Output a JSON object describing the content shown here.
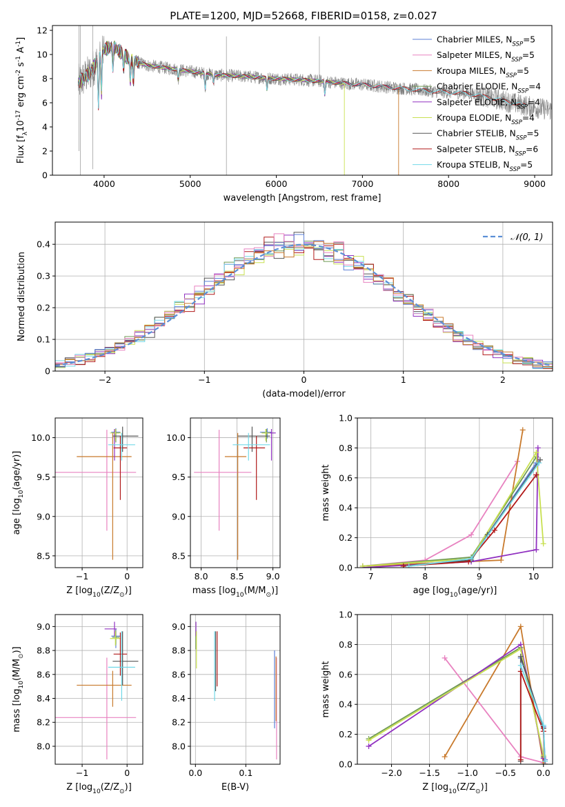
{
  "figure_title": "PLATE=1200, MJD=52668, FIBERID=0158, z=0.027",
  "colors": {
    "chabrier_miles": "#5b7fd6",
    "salpeter_miles": "#e882c0",
    "kroupa_miles": "#c8792b",
    "chabrier_elodie": "#6f9a55",
    "salpeter_elodie": "#9030c0",
    "kroupa_elodie": "#c8e050",
    "chabrier_stelib": "#555555",
    "salpeter_stelib": "#b01818",
    "kroupa_stelib": "#70d8e8",
    "data": "#808080",
    "normal": "#5b8fd6"
  },
  "chart_data": [
    {
      "id": "spectrum",
      "type": "line",
      "title": "PLATE=1200, MJD=52668, FIBERID=0158, z=0.027",
      "xlabel": "wavelength [Angstrom, rest frame]",
      "ylabel": "Flux [f_λ10^-17 erg cm^-2 s^-1 A^-1]",
      "xlim": [
        3400,
        9200
      ],
      "ylim": [
        0,
        12.4
      ],
      "xticks": [
        4000,
        5000,
        6000,
        7000,
        8000,
        9000
      ],
      "yticks": [
        0,
        2,
        4,
        6,
        8,
        10,
        12
      ],
      "grid": false,
      "legend_position": "top-right",
      "legend": [
        {
          "name": "Chabrier MILES, N_SSP=5",
          "color_key": "chabrier_miles"
        },
        {
          "name": "Salpeter MILES, N_SSP=5",
          "color_key": "salpeter_miles"
        },
        {
          "name": "Kroupa MILES, N_SSP=5",
          "color_key": "kroupa_miles"
        },
        {
          "name": "Chabrier ELODIE, N_SSP=4",
          "color_key": "chabrier_elodie"
        },
        {
          "name": "Salpeter ELODIE, N_SSP=4",
          "color_key": "salpeter_elodie"
        },
        {
          "name": "Kroupa ELODIE, N_SSP=4",
          "color_key": "kroupa_elodie"
        },
        {
          "name": "Chabrier STELIB, N_SSP=5",
          "color_key": "chabrier_stelib"
        },
        {
          "name": "Salpeter STELIB, N_SSP=6",
          "color_key": "salpeter_stelib"
        },
        {
          "name": "Kroupa STELIB, N_SSP=5",
          "color_key": "kroupa_stelib"
        }
      ],
      "continuum": {
        "x": [
          3700,
          3850,
          4000,
          4100,
          4300,
          4500,
          4700,
          5000,
          5300,
          5600,
          6000,
          6300,
          6500,
          6800,
          7000,
          7300,
          7600,
          7900,
          8200,
          8500,
          8800,
          9000,
          9200
        ],
        "y": [
          7.6,
          8.6,
          10.4,
          10.7,
          9.6,
          9.1,
          8.9,
          8.6,
          8.3,
          8.2,
          8.0,
          7.9,
          7.8,
          7.6,
          7.5,
          7.3,
          7.1,
          6.9,
          6.8,
          6.4,
          5.9,
          5.6,
          5.4
        ]
      }
    },
    {
      "id": "residuals",
      "type": "line",
      "xlabel": "(data-model)/error",
      "ylabel": "Normed distribution",
      "xlim": [
        -2.5,
        2.5
      ],
      "ylim": [
        0,
        0.47
      ],
      "xticks": [
        -2,
        -1,
        0,
        1,
        2
      ],
      "yticks": [
        0.0,
        0.1,
        0.2,
        0.3,
        0.4
      ],
      "grid": true,
      "legend_position": "top-right",
      "legend": [
        {
          "name": "𝒩(0, 1)",
          "color_key": "normal"
        }
      ],
      "bin_width": 0.1
    },
    {
      "id": "age_vs_z",
      "type": "scatter",
      "xlabel": "Z [log10(Z/Z⊙)]",
      "ylabel": "age [log10(age/yr)]",
      "xlim": [
        -1.6,
        0.35
      ],
      "ylim": [
        8.35,
        10.25
      ],
      "xticks": [
        -1,
        0
      ],
      "yticks": [
        8.5,
        9.0,
        9.5,
        10.0
      ],
      "grid": true,
      "points": [
        {
          "k": "chabrier_miles",
          "x": -0.25,
          "xe": [
            0.1,
            0.1
          ],
          "y": 10.07,
          "ye": [
            0.08,
            0.05
          ]
        },
        {
          "k": "salpeter_miles",
          "x": -0.45,
          "xe": [
            1.15,
            0.65
          ],
          "y": 9.56,
          "ye": [
            0.74,
            0.54
          ]
        },
        {
          "k": "kroupa_miles",
          "x": -0.32,
          "xe": [
            0.8,
            0.42
          ],
          "y": 9.76,
          "ye": [
            1.31,
            0.3
          ]
        },
        {
          "k": "chabrier_elodie",
          "x": -0.25,
          "xe": [
            0.08,
            0.08
          ],
          "y": 10.06,
          "ye": [
            0.12,
            0.05
          ]
        },
        {
          "k": "salpeter_elodie",
          "x": -0.28,
          "xe": [
            0.05,
            0.05
          ],
          "y": 10.06,
          "ye": [
            0.35,
            0.05
          ]
        },
        {
          "k": "kroupa_elodie",
          "x": -0.26,
          "xe": [
            0.12,
            0.12
          ],
          "y": 10.06,
          "ye": [
            0.1,
            0.05
          ]
        },
        {
          "k": "chabrier_stelib",
          "x": -0.1,
          "xe": [
            0.22,
            0.35
          ],
          "y": 10.02,
          "ye": [
            0.2,
            0.12
          ]
        },
        {
          "k": "salpeter_stelib",
          "x": -0.15,
          "xe": [
            0.15,
            0.15
          ],
          "y": 9.87,
          "ye": [
            0.66,
            0.15
          ]
        },
        {
          "k": "kroupa_stelib",
          "x": -0.12,
          "xe": [
            0.3,
            0.3
          ],
          "y": 9.91,
          "ye": [
            0.2,
            0.15
          ]
        }
      ]
    },
    {
      "id": "age_vs_mass",
      "type": "scatter",
      "xlabel": "mass [log10(M/M⊙)]",
      "ylabel": "",
      "xlim": [
        7.85,
        9.1
      ],
      "ylim": [
        8.35,
        10.25
      ],
      "xticks": [
        8.0,
        8.5,
        9.0
      ],
      "yticks": [
        8.5,
        9.0,
        9.5,
        10.0
      ],
      "grid": true,
      "points": [
        {
          "k": "chabrier_miles",
          "x": 8.92,
          "xe": [
            0.1,
            0.06
          ],
          "y": 10.07,
          "ye": [
            0.08,
            0.05
          ]
        },
        {
          "k": "salpeter_miles",
          "x": 8.25,
          "xe": [
            0.35,
            0.45
          ],
          "y": 9.56,
          "ye": [
            0.74,
            0.54
          ]
        },
        {
          "k": "kroupa_miles",
          "x": 8.51,
          "xe": [
            0.18,
            0.12
          ],
          "y": 9.76,
          "ye": [
            1.31,
            0.3
          ]
        },
        {
          "k": "chabrier_elodie",
          "x": 8.91,
          "xe": [
            0.06,
            0.06
          ],
          "y": 10.06,
          "ye": [
            0.12,
            0.05
          ]
        },
        {
          "k": "salpeter_elodie",
          "x": 8.98,
          "xe": [
            0.06,
            0.06
          ],
          "y": 10.06,
          "ye": [
            0.35,
            0.05
          ]
        },
        {
          "k": "kroupa_elodie",
          "x": 8.9,
          "xe": [
            0.06,
            0.06
          ],
          "y": 10.06,
          "ye": [
            0.1,
            0.05
          ]
        },
        {
          "k": "chabrier_stelib",
          "x": 8.71,
          "xe": [
            0.2,
            0.25
          ],
          "y": 10.02,
          "ye": [
            0.2,
            0.12
          ]
        },
        {
          "k": "salpeter_stelib",
          "x": 8.77,
          "xe": [
            0.18,
            0.12
          ],
          "y": 9.87,
          "ye": [
            0.66,
            0.15
          ]
        },
        {
          "k": "kroupa_stelib",
          "x": 8.66,
          "xe": [
            0.22,
            0.3
          ],
          "y": 9.91,
          "ye": [
            0.2,
            0.15
          ]
        }
      ]
    },
    {
      "id": "weight_vs_age",
      "type": "line",
      "xlabel": "age [log10(age/yr)]",
      "ylabel": "mass weight",
      "xlim": [
        6.75,
        10.35
      ],
      "ylim": [
        0,
        1.0
      ],
      "xticks": [
        7,
        8,
        9,
        10
      ],
      "yticks": [
        0.0,
        0.2,
        0.4,
        0.6,
        0.8,
        1.0
      ],
      "grid": true,
      "series": [
        {
          "k": "chabrier_miles",
          "x": [
            6.85,
            8.85,
            10.05
          ],
          "y": [
            0.01,
            0.06,
            0.7
          ]
        },
        {
          "k": "salpeter_miles",
          "x": [
            6.85,
            8.0,
            8.85,
            9.7
          ],
          "y": [
            0.01,
            0.05,
            0.22,
            0.71
          ]
        },
        {
          "k": "kroupa_miles",
          "x": [
            6.85,
            9.4,
            9.8
          ],
          "y": [
            0.01,
            0.05,
            0.92
          ]
        },
        {
          "k": "chabrier_elodie",
          "x": [
            6.85,
            8.85,
            10.05
          ],
          "y": [
            0.01,
            0.07,
            0.74
          ]
        },
        {
          "k": "salpeter_elodie",
          "x": [
            6.85,
            8.85,
            10.05,
            10.08
          ],
          "y": [
            0.0,
            0.04,
            0.12,
            0.8
          ]
        },
        {
          "k": "kroupa_elodie",
          "x": [
            6.85,
            8.85,
            10.05,
            10.18
          ],
          "y": [
            0.01,
            0.06,
            0.77,
            0.16
          ]
        },
        {
          "k": "chabrier_stelib",
          "x": [
            7.6,
            8.85,
            9.15,
            10.12
          ],
          "y": [
            0.01,
            0.05,
            0.22,
            0.72
          ]
        },
        {
          "k": "salpeter_stelib",
          "x": [
            7.6,
            8.8,
            9.28,
            10.05
          ],
          "y": [
            0.01,
            0.04,
            0.25,
            0.62
          ]
        },
        {
          "k": "kroupa_stelib",
          "x": [
            7.7,
            8.85,
            10.1
          ],
          "y": [
            0.01,
            0.06,
            0.7
          ]
        }
      ]
    },
    {
      "id": "mass_vs_z",
      "type": "scatter",
      "xlabel": "Z [log10(Z/Z⊙)]",
      "ylabel": "mass [log10(M/M⊙)]",
      "xlim": [
        -1.6,
        0.35
      ],
      "ylim": [
        7.85,
        9.1
      ],
      "xticks": [
        -1,
        0
      ],
      "yticks": [
        8.0,
        8.2,
        8.4,
        8.6,
        8.8,
        9.0
      ],
      "grid": true,
      "points": [
        {
          "k": "chabrier_miles",
          "x": -0.25,
          "xe": [
            0.1,
            0.1
          ],
          "y": 8.92,
          "ye": [
            0.1,
            0.06
          ]
        },
        {
          "k": "salpeter_miles",
          "x": -0.45,
          "xe": [
            1.15,
            0.65
          ],
          "y": 8.24,
          "ye": [
            0.35,
            0.5
          ]
        },
        {
          "k": "kroupa_miles",
          "x": -0.32,
          "xe": [
            0.8,
            0.42
          ],
          "y": 8.51,
          "ye": [
            0.18,
            0.12
          ]
        },
        {
          "k": "chabrier_elodie",
          "x": -0.25,
          "xe": [
            0.08,
            0.08
          ],
          "y": 8.91,
          "ye": [
            0.06,
            0.06
          ]
        },
        {
          "k": "salpeter_elodie",
          "x": -0.28,
          "xe": [
            0.22,
            0.05
          ],
          "y": 8.98,
          "ye": [
            0.06,
            0.06
          ]
        },
        {
          "k": "kroupa_elodie",
          "x": -0.26,
          "xe": [
            0.12,
            0.12
          ],
          "y": 8.9,
          "ye": [
            0.06,
            0.06
          ]
        },
        {
          "k": "chabrier_stelib",
          "x": -0.1,
          "xe": [
            0.22,
            0.35
          ],
          "y": 8.71,
          "ye": [
            0.2,
            0.25
          ]
        },
        {
          "k": "salpeter_stelib",
          "x": -0.15,
          "xe": [
            0.15,
            0.15
          ],
          "y": 8.77,
          "ye": [
            0.18,
            0.18
          ]
        },
        {
          "k": "kroupa_stelib",
          "x": -0.12,
          "xe": [
            0.3,
            0.3
          ],
          "y": 8.66,
          "ye": [
            0.28,
            0.3
          ]
        }
      ]
    },
    {
      "id": "mass_vs_ebv",
      "type": "scatter",
      "xlabel": "E(B-V)",
      "ylabel": "",
      "xlim": [
        -0.01,
        0.168
      ],
      "ylim": [
        7.85,
        9.1
      ],
      "xticks": [
        0.0,
        0.1
      ],
      "yticks": [
        8.0,
        8.2,
        8.4,
        8.6,
        8.8,
        9.0
      ],
      "grid": true,
      "points": [
        {
          "k": "chabrier_miles",
          "x": 0.157,
          "xe": [
            0,
            0
          ],
          "y": 8.5,
          "ye": [
            0.35,
            0.3
          ]
        },
        {
          "k": "salpeter_miles",
          "x": 0.161,
          "xe": [
            0,
            0
          ],
          "y": 8.24,
          "ye": [
            0.35,
            0.5
          ]
        },
        {
          "k": "kroupa_miles",
          "x": 0.16,
          "xe": [
            0,
            0
          ],
          "y": 8.51,
          "ye": [
            0.3,
            0.24
          ]
        },
        {
          "k": "chabrier_elodie",
          "x": 0.001,
          "xe": [
            0,
            0
          ],
          "y": 8.91,
          "ye": [
            0.1,
            0.06
          ]
        },
        {
          "k": "salpeter_elodie",
          "x": 0.001,
          "xe": [
            0,
            0
          ],
          "y": 8.98,
          "ye": [
            0.06,
            0.06
          ]
        },
        {
          "k": "kroupa_elodie",
          "x": 0.002,
          "xe": [
            0,
            0
          ],
          "y": 8.9,
          "ye": [
            0.25,
            0.06
          ]
        },
        {
          "k": "chabrier_stelib",
          "x": 0.04,
          "xe": [
            0,
            0
          ],
          "y": 8.71,
          "ye": [
            0.25,
            0.25
          ]
        },
        {
          "k": "salpeter_stelib",
          "x": 0.043,
          "xe": [
            0,
            0
          ],
          "y": 8.72,
          "ye": [
            0.22,
            0.24
          ]
        },
        {
          "k": "kroupa_stelib",
          "x": 0.038,
          "xe": [
            0,
            0
          ],
          "y": 8.66,
          "ye": [
            0.28,
            0.3
          ]
        }
      ]
    },
    {
      "id": "weight_vs_z",
      "type": "line",
      "xlabel": "Z [log10(Z/Z⊙)]",
      "ylabel": "mass weight",
      "xlim": [
        -2.45,
        0.12
      ],
      "ylim": [
        0,
        1.0
      ],
      "xticks": [
        -2.0,
        -1.5,
        -1.0,
        -0.5,
        0.0
      ],
      "yticks": [
        0.0,
        0.2,
        0.4,
        0.6,
        0.8,
        1.0
      ],
      "grid": true,
      "series": [
        {
          "k": "chabrier_miles",
          "x": [
            -0.3,
            0.0,
            0.02
          ],
          "y": [
            0.71,
            0.25,
            0.03
          ]
        },
        {
          "k": "salpeter_miles",
          "x": [
            -1.3,
            -0.3,
            0.0
          ],
          "y": [
            0.71,
            0.05,
            0.01
          ]
        },
        {
          "k": "kroupa_miles",
          "x": [
            -1.3,
            -0.3,
            0.0
          ],
          "y": [
            0.05,
            0.92,
            0.0
          ]
        },
        {
          "k": "chabrier_elodie",
          "x": [
            -2.3,
            -0.3,
            0.0
          ],
          "y": [
            0.17,
            0.78,
            0.05
          ]
        },
        {
          "k": "salpeter_elodie",
          "x": [
            -2.3,
            -0.3,
            0.0
          ],
          "y": [
            0.12,
            0.8,
            0.04
          ]
        },
        {
          "k": "kroupa_elodie",
          "x": [
            -2.3,
            -0.3,
            0.0
          ],
          "y": [
            0.16,
            0.77,
            0.06
          ]
        },
        {
          "k": "chabrier_stelib",
          "x": [
            -0.3,
            -0.3,
            0.0,
            0.02
          ],
          "y": [
            0.02,
            0.72,
            0.24,
            0.0
          ]
        },
        {
          "k": "salpeter_stelib",
          "x": [
            -0.3,
            -0.3,
            0.0,
            0.02
          ],
          "y": [
            0.03,
            0.62,
            0.22,
            0.0
          ]
        },
        {
          "k": "kroupa_stelib",
          "x": [
            -0.3,
            0.0,
            0.02
          ],
          "y": [
            0.66,
            0.26,
            0.02
          ]
        }
      ]
    }
  ]
}
